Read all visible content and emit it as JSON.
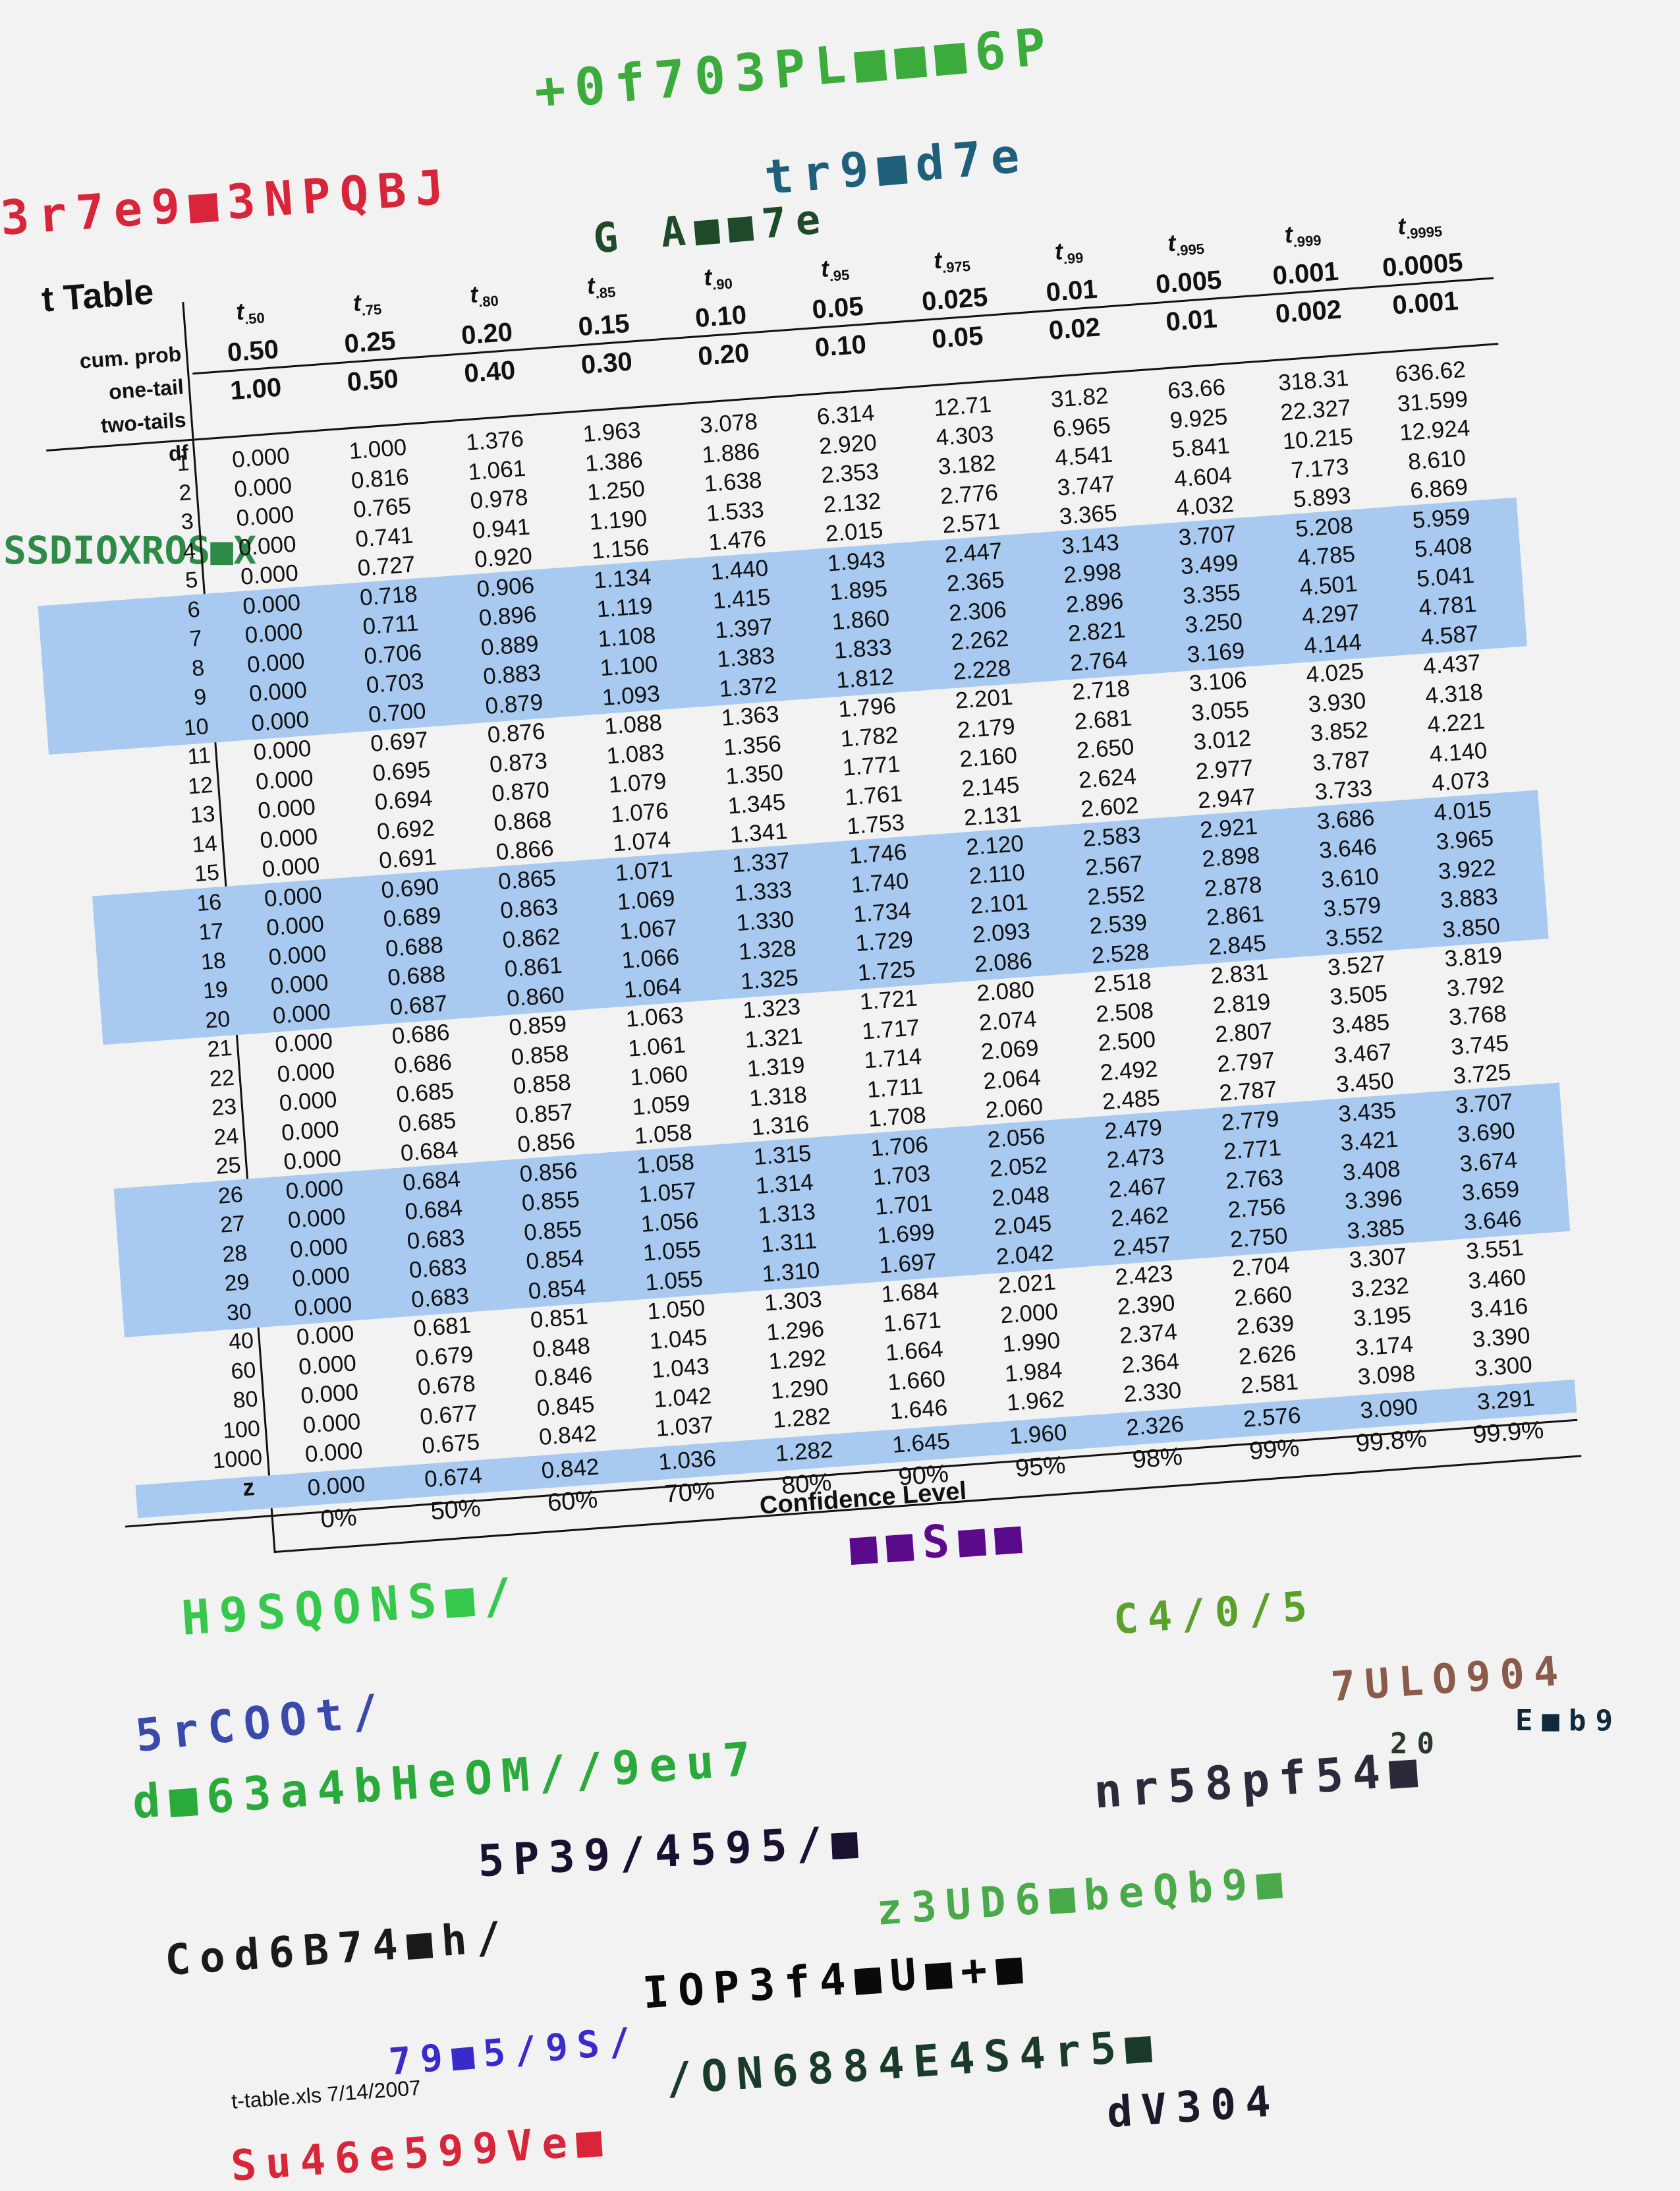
{
  "title": "t Table",
  "header_row_labels": [
    "cum. prob",
    "one-tail",
    "two-tails"
  ],
  "df_label": "df",
  "z_label": "z",
  "columns": [
    {
      "t_label": ".50",
      "cum": "",
      "one": "0.50",
      "two": "1.00"
    },
    {
      "t_label": ".75",
      "cum": "",
      "one": "0.25",
      "two": "0.50"
    },
    {
      "t_label": ".80",
      "cum": "",
      "one": "0.20",
      "two": "0.40"
    },
    {
      "t_label": ".85",
      "cum": "",
      "one": "0.15",
      "two": "0.30"
    },
    {
      "t_label": ".90",
      "cum": "",
      "one": "0.10",
      "two": "0.20"
    },
    {
      "t_label": ".95",
      "cum": "",
      "one": "0.05",
      "two": "0.10"
    },
    {
      "t_label": ".975",
      "cum": "",
      "one": "0.025",
      "two": "0.05"
    },
    {
      "t_label": ".99",
      "cum": "",
      "one": "0.01",
      "two": "0.02"
    },
    {
      "t_label": ".995",
      "cum": "",
      "one": "0.005",
      "two": "0.01"
    },
    {
      "t_label": ".999",
      "cum": "",
      "one": "0.001",
      "two": "0.002"
    },
    {
      "t_label": ".9995",
      "cum": "",
      "one": "0.0005",
      "two": "0.001"
    }
  ],
  "rows": [
    {
      "df": "1",
      "values": [
        "0.000",
        "1.000",
        "1.376",
        "1.963",
        "3.078",
        "6.314",
        "12.71",
        "31.82",
        "63.66",
        "318.31",
        "636.62"
      ]
    },
    {
      "df": "2",
      "values": [
        "0.000",
        "0.816",
        "1.061",
        "1.386",
        "1.886",
        "2.920",
        "4.303",
        "6.965",
        "9.925",
        "22.327",
        "31.599"
      ]
    },
    {
      "df": "3",
      "values": [
        "0.000",
        "0.765",
        "0.978",
        "1.250",
        "1.638",
        "2.353",
        "3.182",
        "4.541",
        "5.841",
        "10.215",
        "12.924"
      ]
    },
    {
      "df": "4",
      "values": [
        "0.000",
        "0.741",
        "0.941",
        "1.190",
        "1.533",
        "2.132",
        "2.776",
        "3.747",
        "4.604",
        "7.173",
        "8.610"
      ]
    },
    {
      "df": "5",
      "values": [
        "0.000",
        "0.727",
        "0.920",
        "1.156",
        "1.476",
        "2.015",
        "2.571",
        "3.365",
        "4.032",
        "5.893",
        "6.869"
      ]
    },
    {
      "df": "6",
      "values": [
        "0.000",
        "0.718",
        "0.906",
        "1.134",
        "1.440",
        "1.943",
        "2.447",
        "3.143",
        "3.707",
        "5.208",
        "5.959"
      ]
    },
    {
      "df": "7",
      "values": [
        "0.000",
        "0.711",
        "0.896",
        "1.119",
        "1.415",
        "1.895",
        "2.365",
        "2.998",
        "3.499",
        "4.785",
        "5.408"
      ]
    },
    {
      "df": "8",
      "values": [
        "0.000",
        "0.706",
        "0.889",
        "1.108",
        "1.397",
        "1.860",
        "2.306",
        "2.896",
        "3.355",
        "4.501",
        "5.041"
      ]
    },
    {
      "df": "9",
      "values": [
        "0.000",
        "0.703",
        "0.883",
        "1.100",
        "1.383",
        "1.833",
        "2.262",
        "2.821",
        "3.250",
        "4.297",
        "4.781"
      ]
    },
    {
      "df": "10",
      "values": [
        "0.000",
        "0.700",
        "0.879",
        "1.093",
        "1.372",
        "1.812",
        "2.228",
        "2.764",
        "3.169",
        "4.144",
        "4.587"
      ]
    },
    {
      "df": "11",
      "values": [
        "0.000",
        "0.697",
        "0.876",
        "1.088",
        "1.363",
        "1.796",
        "2.201",
        "2.718",
        "3.106",
        "4.025",
        "4.437"
      ]
    },
    {
      "df": "12",
      "values": [
        "0.000",
        "0.695",
        "0.873",
        "1.083",
        "1.356",
        "1.782",
        "2.179",
        "2.681",
        "3.055",
        "3.930",
        "4.318"
      ]
    },
    {
      "df": "13",
      "values": [
        "0.000",
        "0.694",
        "0.870",
        "1.079",
        "1.350",
        "1.771",
        "2.160",
        "2.650",
        "3.012",
        "3.852",
        "4.221"
      ]
    },
    {
      "df": "14",
      "values": [
        "0.000",
        "0.692",
        "0.868",
        "1.076",
        "1.345",
        "1.761",
        "2.145",
        "2.624",
        "2.977",
        "3.787",
        "4.140"
      ]
    },
    {
      "df": "15",
      "values": [
        "0.000",
        "0.691",
        "0.866",
        "1.074",
        "1.341",
        "1.753",
        "2.131",
        "2.602",
        "2.947",
        "3.733",
        "4.073"
      ]
    },
    {
      "df": "16",
      "values": [
        "0.000",
        "0.690",
        "0.865",
        "1.071",
        "1.337",
        "1.746",
        "2.120",
        "2.583",
        "2.921",
        "3.686",
        "4.015"
      ]
    },
    {
      "df": "17",
      "values": [
        "0.000",
        "0.689",
        "0.863",
        "1.069",
        "1.333",
        "1.740",
        "2.110",
        "2.567",
        "2.898",
        "3.646",
        "3.965"
      ]
    },
    {
      "df": "18",
      "values": [
        "0.000",
        "0.688",
        "0.862",
        "1.067",
        "1.330",
        "1.734",
        "2.101",
        "2.552",
        "2.878",
        "3.610",
        "3.922"
      ]
    },
    {
      "df": "19",
      "values": [
        "0.000",
        "0.688",
        "0.861",
        "1.066",
        "1.328",
        "1.729",
        "2.093",
        "2.539",
        "2.861",
        "3.579",
        "3.883"
      ]
    },
    {
      "df": "20",
      "values": [
        "0.000",
        "0.687",
        "0.860",
        "1.064",
        "1.325",
        "1.725",
        "2.086",
        "2.528",
        "2.845",
        "3.552",
        "3.850"
      ]
    },
    {
      "df": "21",
      "values": [
        "0.000",
        "0.686",
        "0.859",
        "1.063",
        "1.323",
        "1.721",
        "2.080",
        "2.518",
        "2.831",
        "3.527",
        "3.819"
      ]
    },
    {
      "df": "22",
      "values": [
        "0.000",
        "0.686",
        "0.858",
        "1.061",
        "1.321",
        "1.717",
        "2.074",
        "2.508",
        "2.819",
        "3.505",
        "3.792"
      ]
    },
    {
      "df": "23",
      "values": [
        "0.000",
        "0.685",
        "0.858",
        "1.060",
        "1.319",
        "1.714",
        "2.069",
        "2.500",
        "2.807",
        "3.485",
        "3.768"
      ]
    },
    {
      "df": "24",
      "values": [
        "0.000",
        "0.685",
        "0.857",
        "1.059",
        "1.318",
        "1.711",
        "2.064",
        "2.492",
        "2.797",
        "3.467",
        "3.745"
      ]
    },
    {
      "df": "25",
      "values": [
        "0.000",
        "0.684",
        "0.856",
        "1.058",
        "1.316",
        "1.708",
        "2.060",
        "2.485",
        "2.787",
        "3.450",
        "3.725"
      ]
    },
    {
      "df": "26",
      "values": [
        "0.000",
        "0.684",
        "0.856",
        "1.058",
        "1.315",
        "1.706",
        "2.056",
        "2.479",
        "2.779",
        "3.435",
        "3.707"
      ]
    },
    {
      "df": "27",
      "values": [
        "0.000",
        "0.684",
        "0.855",
        "1.057",
        "1.314",
        "1.703",
        "2.052",
        "2.473",
        "2.771",
        "3.421",
        "3.690"
      ]
    },
    {
      "df": "28",
      "values": [
        "0.000",
        "0.683",
        "0.855",
        "1.056",
        "1.313",
        "1.701",
        "2.048",
        "2.467",
        "2.763",
        "3.408",
        "3.674"
      ]
    },
    {
      "df": "29",
      "values": [
        "0.000",
        "0.683",
        "0.854",
        "1.055",
        "1.311",
        "1.699",
        "2.045",
        "2.462",
        "2.756",
        "3.396",
        "3.659"
      ]
    },
    {
      "df": "30",
      "values": [
        "0.000",
        "0.683",
        "0.854",
        "1.055",
        "1.310",
        "1.697",
        "2.042",
        "2.457",
        "2.750",
        "3.385",
        "3.646"
      ]
    },
    {
      "df": "40",
      "values": [
        "0.000",
        "0.681",
        "0.851",
        "1.050",
        "1.303",
        "1.684",
        "2.021",
        "2.423",
        "2.704",
        "3.307",
        "3.551"
      ]
    },
    {
      "df": "60",
      "values": [
        "0.000",
        "0.679",
        "0.848",
        "1.045",
        "1.296",
        "1.671",
        "2.000",
        "2.390",
        "2.660",
        "3.232",
        "3.460"
      ]
    },
    {
      "df": "80",
      "values": [
        "0.000",
        "0.678",
        "0.846",
        "1.043",
        "1.292",
        "1.664",
        "1.990",
        "2.374",
        "2.639",
        "3.195",
        "3.416"
      ]
    },
    {
      "df": "100",
      "values": [
        "0.000",
        "0.677",
        "0.845",
        "1.042",
        "1.290",
        "1.660",
        "1.984",
        "2.364",
        "2.626",
        "3.174",
        "3.390"
      ]
    },
    {
      "df": "1000",
      "values": [
        "0.000",
        "0.675",
        "0.842",
        "1.037",
        "1.282",
        "1.646",
        "1.962",
        "2.330",
        "2.581",
        "3.098",
        "3.300"
      ]
    }
  ],
  "z_row": [
    "0.000",
    "0.674",
    "0.842",
    "1.036",
    "1.282",
    "1.645",
    "1.960",
    "2.326",
    "2.576",
    "3.090",
    "3.291"
  ],
  "confidence_levels": [
    "0%",
    "50%",
    "60%",
    "70%",
    "80%",
    "90%",
    "95%",
    "98%",
    "99%",
    "99.8%",
    "99.9%"
  ],
  "confidence_label": "Confidence Level",
  "footer_text": "t-table.xls 7/14/2007",
  "colors": {
    "band": "#a8c9f0",
    "background": "#f2f2f2",
    "text": "#111111"
  },
  "scribbles": [
    {
      "text": "+0f703PL■■■6P",
      "color": "#3bab3b"
    },
    {
      "text": "tr9■d7e",
      "color": "#1f5f7a"
    },
    {
      "text": "G A■■7e",
      "color": "#1f4a2a"
    },
    {
      "text": "3r7e9■3NPQBJ",
      "color": "#d8253a"
    },
    {
      "text": "SSDIOXROS■X",
      "color": "#2f8a48"
    },
    {
      "text": "■■S■■",
      "color": "#5a0a8a"
    },
    {
      "text": "H9SQONS■/",
      "color": "#36c84a"
    },
    {
      "text": "C4/0/5",
      "color": "#5aa02a"
    },
    {
      "text": "7ULO904",
      "color": "#8a5a4a"
    },
    {
      "text": "E■b9",
      "color": "#102a3a"
    },
    {
      "text": "20",
      "color": "#2a3a2a"
    },
    {
      "text": "5rCOOt/",
      "color": "#3a4aaa"
    },
    {
      "text": "d■63a4bHeOM//9eu7",
      "color": "#2aaa3a"
    },
    {
      "text": "nr58pf54■",
      "color": "#2a2a3a"
    },
    {
      "text": "5P39/4595/■",
      "color": "#1a1030"
    },
    {
      "text": "z3UD6■beQb9■",
      "color": "#4aaa4a"
    },
    {
      "text": "Cod6B74■h/",
      "color": "#1a1a1a"
    },
    {
      "text": "IOP3f4■U■+■",
      "color": "#0a0a0a"
    },
    {
      "text": "79■5/9S/",
      "color": "#3a2acc"
    },
    {
      "text": "/ON6884E4S4r5■",
      "color": "#1a3a2a"
    },
    {
      "text": "dV304",
      "color": "#1a1a2a"
    },
    {
      "text": "Su46e599Ve■",
      "color": "#d8253a"
    }
  ]
}
